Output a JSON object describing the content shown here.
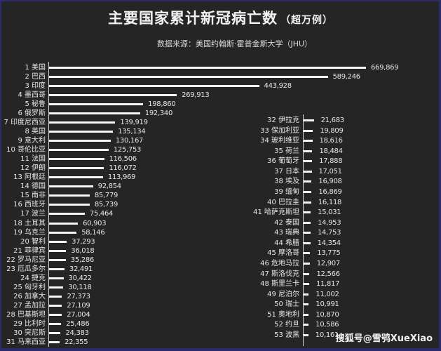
{
  "title": "主要国家累计新冠病亡数",
  "title_unit": "（超万例）",
  "subtitle": "数据来源：美国约翰斯·霍普金斯大学（JHU）",
  "watermark": "搜狐号@雪鸮XueXiao",
  "colors": {
    "background": "#252525",
    "bar": "#f5f5f5",
    "border": "#2b2a6e",
    "text": "#e6e6e6"
  },
  "chart_data": {
    "type": "bar",
    "orientation": "horizontal",
    "title": "主要国家累计新冠病亡数（超万例）",
    "subtitle": "数据来源：美国约翰斯·霍普金斯大学（JHU）",
    "xlabel": "",
    "ylabel": "",
    "grid": false,
    "legend": null,
    "panels": [
      "left: ranks 1-31",
      "right: ranks 32-53"
    ],
    "categories": [
      "1 美国",
      "2 巴西",
      "3 印度",
      "4 墨西哥",
      "5 秘鲁",
      "6 俄罗斯",
      "7 印度尼西亚",
      "8 英国",
      "9 意大利",
      "10 哥伦比亚",
      "11 法国",
      "12 伊朗",
      "13 阿根廷",
      "14 德国",
      "15 南非",
      "16 西班牙",
      "17 波兰",
      "18 土耳其",
      "19 乌克兰",
      "20 智利",
      "21 菲律宾",
      "22 罗马尼亚",
      "23 厄瓜多尔",
      "24 捷克",
      "25 匈牙利",
      "26 加拿大",
      "27 孟加拉",
      "28 巴基斯坦",
      "29 比利时",
      "30 突尼斯",
      "31 马来西亚",
      "32 伊拉克",
      "33 保加利亚",
      "34 玻利维亚",
      "35 荷兰",
      "36 葡萄牙",
      "37 日本",
      "38 埃及",
      "39 缅甸",
      "40 巴拉圭",
      "41 哈萨克斯坦",
      "42 泰国",
      "43 瑞典",
      "44 希腊",
      "45 摩洛哥",
      "46 危地马拉",
      "47 斯洛伐克",
      "48 斯里兰卡",
      "49 尼泊尔",
      "50 瑞士",
      "51 奥地利",
      "52 约旦",
      "53 波黑"
    ],
    "values": [
      669869,
      589246,
      443928,
      269913,
      198860,
      192340,
      139919,
      135134,
      130167,
      125753,
      116506,
      116072,
      113969,
      92854,
      85779,
      85739,
      75464,
      60903,
      58146,
      37293,
      36018,
      35286,
      32491,
      30422,
      30118,
      27373,
      27109,
      27004,
      25486,
      24383,
      22355,
      21683,
      19809,
      18616,
      18484,
      17888,
      17051,
      16908,
      16869,
      16118,
      15031,
      14953,
      14753,
      14354,
      13775,
      12907,
      12566,
      11817,
      11002,
      10991,
      10870,
      10586,
      10161
    ],
    "value_labels": [
      "669,869",
      "589,246",
      "443,928",
      "269,913",
      "198,860",
      "192,340",
      "139,919",
      "135,134",
      "130,167",
      "125,753",
      "116,506",
      "116,072",
      "113,969",
      "92,854",
      "85,779",
      "85,739",
      "75,464",
      "60,903",
      "58,146",
      "37,293",
      "36,018",
      "35,286",
      "32,491",
      "30,422",
      "30,118",
      "27,373",
      "27,109",
      "27,004",
      "25,486",
      "24,383",
      "22,355",
      "21,683",
      "19,809",
      "18,616",
      "18,484",
      "17,888",
      "17,051",
      "16,908",
      "16,869",
      "16,118",
      "15,031",
      "14,953",
      "14,753",
      "14,354",
      "13,775",
      "12,907",
      "12,566",
      "11,817",
      "11,002",
      "10,991",
      "10,870",
      "10,586",
      "10,161"
    ],
    "xlim": [
      0,
      700000
    ]
  }
}
